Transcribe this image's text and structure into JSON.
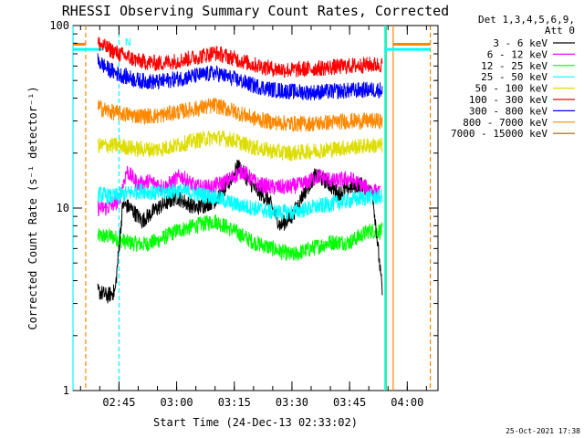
{
  "chart_data": {
    "type": "line",
    "title": "RHESSI Observing Summary Count Rates, Corrected",
    "xlabel": "Start Time (24-Dec-13 02:33:02)",
    "ylabel": "Corrected Count Rate (s⁻¹ detector⁻¹)",
    "y_scale": "log",
    "ylim": [
      1,
      100
    ],
    "y_ticks": [
      1,
      10,
      100
    ],
    "y_tick_labels": [
      "1",
      "10",
      "100"
    ],
    "xlim": [
      "02:33:02",
      "04:08:00"
    ],
    "x_ticks": [
      "02:45",
      "03:00",
      "03:15",
      "03:30",
      "03:45",
      "04:00"
    ],
    "x_tick_labels": [
      "02:45",
      "03:00",
      "03:15",
      "03:30",
      "03:45",
      "04:00"
    ],
    "grid": false,
    "legend": {
      "placement": "right",
      "header": [
        "Det 1,3,4,5,6,9,",
        "Att 0"
      ]
    },
    "data_start": "02:39:30",
    "data_end": "03:54:00",
    "series": [
      {
        "name": "3 - 6 keV",
        "color": "#000000",
        "x": [
          "02:39:30",
          "02:42:00",
          "02:44:00",
          "02:46:00",
          "02:48:00",
          "02:51:00",
          "02:55:00",
          "03:00:00",
          "03:05:00",
          "03:10:00",
          "03:13:00",
          "03:16:00",
          "03:20:00",
          "03:24:00",
          "03:27:00",
          "03:30:00",
          "03:33:00",
          "03:36:00",
          "03:39:00",
          "03:42:00",
          "03:45:00",
          "03:48:00",
          "03:51:00",
          "03:53:30"
        ],
        "values": [
          3.5,
          3.3,
          3.5,
          10.5,
          10,
          8.5,
          10,
          11.5,
          10,
          11,
          13,
          17,
          13,
          11,
          8,
          9,
          12,
          15,
          14,
          12,
          13,
          13.5,
          12,
          3.5
        ]
      },
      {
        "name": "6 - 12 keV",
        "color": "#ff00ff",
        "x": [
          "02:39:30",
          "02:42:00",
          "02:45:00",
          "02:47:00",
          "02:50:00",
          "02:53:00",
          "02:57:00",
          "03:01:00",
          "03:05:00",
          "03:09:00",
          "03:13:00",
          "03:17:00",
          "03:21:00",
          "03:25:00",
          "03:29:00",
          "03:33:00",
          "03:37:00",
          "03:41:00",
          "03:45:00",
          "03:49:00",
          "03:53:00"
        ],
        "values": [
          10,
          10,
          11,
          16,
          13.5,
          14,
          13,
          15,
          13,
          13,
          14,
          16,
          13.5,
          13,
          13,
          13.5,
          15,
          14,
          14.5,
          13,
          12
        ]
      },
      {
        "name": "12 - 25 keV",
        "color": "#00ff00",
        "x": [
          "02:39:30",
          "02:43:00",
          "02:47:00",
          "02:51:00",
          "02:55:00",
          "03:00:00",
          "03:05:00",
          "03:10:00",
          "03:15:00",
          "03:20:00",
          "03:25:00",
          "03:30:00",
          "03:35:00",
          "03:40:00",
          "03:45:00",
          "03:50:00",
          "03:53:30"
        ],
        "values": [
          7,
          7,
          6.5,
          6.3,
          6.6,
          7.5,
          8,
          8.5,
          7.5,
          6.5,
          6,
          5.5,
          6,
          6.5,
          6.5,
          7.5,
          7.5
        ]
      },
      {
        "name": "25 - 50 keV",
        "color": "#00ffff",
        "x": [
          "02:39:30",
          "02:43:00",
          "02:47:00",
          "02:51:00",
          "02:55:00",
          "03:00:00",
          "03:05:00",
          "03:10:00",
          "03:15:00",
          "03:20:00",
          "03:25:00",
          "03:30:00",
          "03:35:00",
          "03:40:00",
          "03:45:00",
          "03:50:00",
          "03:53:30"
        ],
        "values": [
          12,
          11.5,
          12,
          12.5,
          12,
          12.5,
          12,
          11.5,
          10.5,
          10,
          9.5,
          9.5,
          10,
          10.5,
          11,
          11.5,
          11.5
        ]
      },
      {
        "name": "50 - 100 keV",
        "color": "#dddd00",
        "x": [
          "02:39:30",
          "02:45:00",
          "02:50:00",
          "02:55:00",
          "03:00:00",
          "03:05:00",
          "03:10:00",
          "03:15:00",
          "03:20:00",
          "03:25:00",
          "03:30:00",
          "03:35:00",
          "03:40:00",
          "03:45:00",
          "03:50:00",
          "03:53:30"
        ],
        "values": [
          22,
          22,
          21,
          21,
          22,
          23.5,
          24.5,
          23.5,
          21.5,
          20.5,
          20,
          20.5,
          21,
          21.5,
          22,
          22
        ]
      },
      {
        "name": "100 - 300 keV",
        "color": "#ff0000",
        "x": [
          "02:39:30",
          "02:42:00",
          "02:45:00",
          "02:50:00",
          "02:55:00",
          "03:00:00",
          "03:05:00",
          "03:10:00",
          "03:15:00",
          "03:20:00",
          "03:25:00",
          "03:30:00",
          "03:35:00",
          "03:40:00",
          "03:45:00",
          "03:50:00",
          "03:53:30"
        ],
        "values": [
          80,
          75,
          70,
          64,
          62,
          64,
          67,
          71,
          66,
          61,
          58,
          57,
          58,
          59,
          60,
          61,
          61
        ]
      },
      {
        "name": "300 - 800 keV",
        "color": "#0000ff",
        "x": [
          "02:39:30",
          "02:42:00",
          "02:45:00",
          "02:50:00",
          "02:55:00",
          "03:00:00",
          "03:05:00",
          "03:10:00",
          "03:15:00",
          "03:20:00",
          "03:25:00",
          "03:30:00",
          "03:35:00",
          "03:40:00",
          "03:45:00",
          "03:50:00",
          "03:53:30"
        ],
        "values": [
          64,
          58,
          54,
          50,
          49,
          51,
          53,
          55,
          51,
          47,
          44.5,
          43.5,
          43,
          43.5,
          44,
          44.5,
          44.5
        ]
      },
      {
        "name": "800 - 7000 keV",
        "color": "#ff8800",
        "x": [
          "02:39:30",
          "02:42:00",
          "02:45:00",
          "02:50:00",
          "02:55:00",
          "03:00:00",
          "03:05:00",
          "03:10:00",
          "03:15:00",
          "03:20:00",
          "03:25:00",
          "03:30:00",
          "03:35:00",
          "03:40:00",
          "03:45:00",
          "03:50:00",
          "03:53:30"
        ],
        "values": [
          36,
          34,
          33,
          32,
          32,
          33.5,
          35,
          36.5,
          34,
          31,
          29.5,
          29,
          29,
          29.5,
          30,
          30,
          30
        ]
      },
      {
        "name": "7000 - 15000 keV",
        "color": "#996600",
        "x": [],
        "values": []
      }
    ],
    "vertical_markers": [
      {
        "x": "02:33:02",
        "color": "#00ffff",
        "style": "solid"
      },
      {
        "x": "02:36:20",
        "color": "#ff8800",
        "style": "dashed"
      },
      {
        "x": "02:45:00",
        "color": "#00ffff",
        "style": "dashed"
      },
      {
        "x": "03:54:10",
        "color": "#00ffff",
        "style": "solid"
      },
      {
        "x": "03:54:30",
        "color": "#00dd55",
        "style": "solid"
      },
      {
        "x": "03:56:20",
        "color": "#ff8800",
        "style": "solid"
      },
      {
        "x": "04:06:00",
        "color": "#ff8800",
        "style": "dashed"
      }
    ],
    "horizontal_markers": [
      {
        "x_from": "02:33:02",
        "x_to": "02:41:00",
        "y": 74,
        "color": "#00ffff"
      },
      {
        "x_from": "02:33:02",
        "x_to": "02:36:20",
        "y": 79,
        "color": "#ff8800"
      },
      {
        "x_from": "03:54:10",
        "x_to": "04:06:00",
        "y": 74,
        "color": "#00ffff"
      },
      {
        "x_from": "03:56:20",
        "x_to": "04:06:00",
        "y": 79,
        "color": "#ff8800"
      }
    ],
    "annotation": "N"
  },
  "footer": {
    "timestamp": "25-Oct-2021 17:38"
  }
}
